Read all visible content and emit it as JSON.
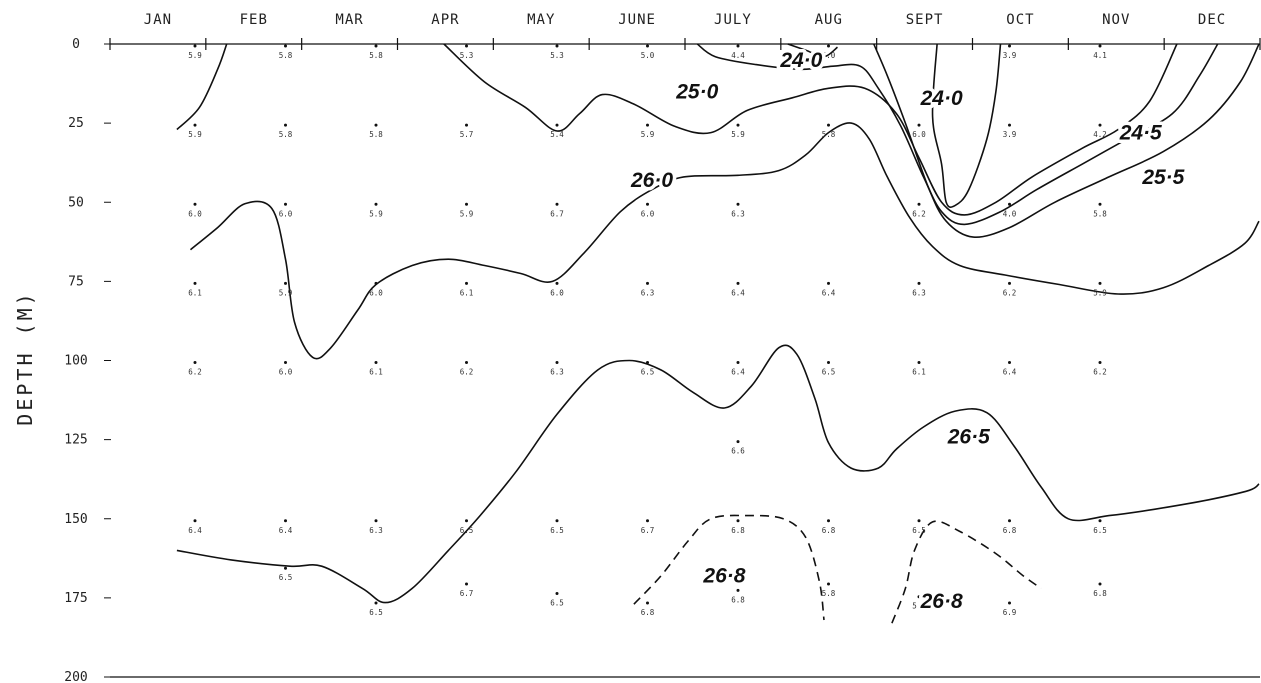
{
  "chart_data": {
    "type": "contour",
    "ylabel": "DEPTH (M)",
    "y_ticks": [
      0,
      25,
      50,
      75,
      100,
      125,
      150,
      175,
      200
    ],
    "ylim": [
      0,
      200
    ],
    "y_inverted": true,
    "months": [
      "JAN",
      "FEB",
      "MAR",
      "APR",
      "MAY",
      "JUNE",
      "JULY",
      "AUG",
      "SEPT",
      "OCT",
      "NOV",
      "DEC"
    ],
    "grid": false,
    "contour_labels": [
      {
        "text": "24·0",
        "month_x": 6.7,
        "depth": 5
      },
      {
        "text": "25·0",
        "month_x": 5.55,
        "depth": 15
      },
      {
        "text": "24·0",
        "month_x": 8.25,
        "depth": 17
      },
      {
        "text": "24·5",
        "month_x": 10.45,
        "depth": 28
      },
      {
        "text": "26·0",
        "month_x": 5.05,
        "depth": 43
      },
      {
        "text": "25·5",
        "month_x": 10.7,
        "depth": 42
      },
      {
        "text": "26·5",
        "month_x": 8.55,
        "depth": 124
      },
      {
        "text": "26·8",
        "month_x": 5.85,
        "depth": 168
      },
      {
        "text": "26·8",
        "month_x": 8.25,
        "depth": 176
      }
    ],
    "contours": [
      {
        "level": "24.0",
        "style": "solid",
        "points": [
          [
            -0.2,
            27
          ],
          [
            0.05,
            20
          ],
          [
            0.25,
            8
          ],
          [
            0.35,
            0
          ]
        ]
      },
      {
        "level": "24.0",
        "style": "solid",
        "points": [
          [
            6.55,
            0
          ],
          [
            6.75,
            2
          ],
          [
            6.95,
            4
          ],
          [
            7.1,
            1
          ]
        ]
      },
      {
        "level": "24.0",
        "style": "solid",
        "points": [
          [
            8.9,
            0
          ],
          [
            8.85,
            15
          ],
          [
            8.75,
            30
          ],
          [
            8.55,
            46
          ],
          [
            8.4,
            51
          ],
          [
            8.3,
            50
          ],
          [
            8.25,
            38
          ],
          [
            8.15,
            23
          ],
          [
            8.2,
            0
          ]
        ]
      },
      {
        "level": "25.0",
        "style": "solid",
        "points": [
          [
            2.75,
            0
          ],
          [
            3.2,
            12
          ],
          [
            3.65,
            20
          ],
          [
            4.0,
            27.5
          ],
          [
            4.25,
            22
          ],
          [
            4.5,
            16
          ],
          [
            4.85,
            19
          ],
          [
            5.3,
            26
          ],
          [
            5.7,
            28
          ],
          [
            6.1,
            21
          ],
          [
            6.6,
            17
          ],
          [
            7.0,
            14
          ],
          [
            7.4,
            14
          ],
          [
            7.75,
            22
          ],
          [
            8.0,
            36
          ],
          [
            8.25,
            50
          ],
          [
            8.5,
            54
          ],
          [
            8.85,
            50
          ],
          [
            9.25,
            42
          ],
          [
            9.8,
            33
          ],
          [
            10.2,
            27
          ],
          [
            10.55,
            18
          ],
          [
            10.85,
            0
          ]
        ]
      },
      {
        "level": "25.0",
        "style": "solid",
        "points": [
          [
            5.55,
            0
          ],
          [
            5.75,
            4
          ],
          [
            6.2,
            6.5
          ],
          [
            6.7,
            8
          ],
          [
            7.05,
            7
          ],
          [
            7.35,
            7
          ],
          [
            7.55,
            14
          ],
          [
            7.8,
            26
          ],
          [
            8.05,
            42
          ],
          [
            8.25,
            53
          ],
          [
            8.5,
            57
          ],
          [
            8.9,
            53
          ],
          [
            9.3,
            46
          ],
          [
            9.8,
            38
          ],
          [
            10.3,
            30
          ],
          [
            10.8,
            22
          ],
          [
            11.1,
            10
          ],
          [
            11.3,
            0
          ]
        ]
      },
      {
        "level": "25.0",
        "style": "solid",
        "points": [
          [
            7.5,
            0
          ],
          [
            7.65,
            10
          ],
          [
            7.85,
            25
          ],
          [
            8.1,
            45
          ],
          [
            8.3,
            56
          ],
          [
            8.6,
            61
          ],
          [
            9.0,
            58
          ],
          [
            9.5,
            50
          ],
          [
            10.1,
            42
          ],
          [
            10.7,
            34
          ],
          [
            11.2,
            24
          ],
          [
            11.55,
            12
          ],
          [
            11.85,
            0
          ]
        ]
      },
      {
        "level": "26.0",
        "style": "solid",
        "points": [
          [
            -0.05,
            65
          ],
          [
            0.25,
            58
          ],
          [
            0.55,
            50.5
          ],
          [
            0.85,
            52
          ],
          [
            1.0,
            68
          ],
          [
            1.1,
            88
          ],
          [
            1.3,
            99
          ],
          [
            1.5,
            96
          ],
          [
            1.8,
            84
          ],
          [
            2.0,
            76
          ],
          [
            2.4,
            70
          ],
          [
            2.8,
            68
          ],
          [
            3.2,
            70
          ],
          [
            3.6,
            72.5
          ],
          [
            3.95,
            75
          ],
          [
            4.3,
            66
          ],
          [
            4.7,
            53
          ],
          [
            5.05,
            46
          ],
          [
            5.4,
            42
          ],
          [
            6.0,
            41.5
          ],
          [
            6.45,
            40
          ],
          [
            6.75,
            35
          ],
          [
            7.0,
            28
          ],
          [
            7.25,
            25
          ],
          [
            7.45,
            30
          ],
          [
            7.65,
            42
          ],
          [
            7.9,
            55
          ],
          [
            8.15,
            64
          ],
          [
            8.45,
            70
          ],
          [
            8.95,
            73
          ],
          [
            9.55,
            76
          ],
          [
            10.2,
            79
          ],
          [
            10.7,
            77
          ],
          [
            11.2,
            70
          ],
          [
            11.6,
            63
          ],
          [
            12.0,
            56
          ]
        ]
      },
      {
        "level": "26.5",
        "style": "solid",
        "points": [
          [
            -0.2,
            160
          ],
          [
            0.4,
            163
          ],
          [
            1.05,
            165
          ],
          [
            1.4,
            165
          ],
          [
            1.85,
            172
          ],
          [
            2.1,
            176.5
          ],
          [
            2.4,
            172
          ],
          [
            2.8,
            160
          ],
          [
            3.15,
            149
          ],
          [
            3.55,
            135
          ],
          [
            4.0,
            117
          ],
          [
            4.45,
            103
          ],
          [
            4.8,
            100
          ],
          [
            5.15,
            103
          ],
          [
            5.5,
            110
          ],
          [
            5.85,
            115
          ],
          [
            6.15,
            108
          ],
          [
            6.45,
            96
          ],
          [
            6.65,
            98
          ],
          [
            6.85,
            112
          ],
          [
            7.0,
            126
          ],
          [
            7.25,
            134
          ],
          [
            7.55,
            134
          ],
          [
            7.75,
            128
          ],
          [
            8.05,
            121
          ],
          [
            8.4,
            116
          ],
          [
            8.75,
            116.5
          ],
          [
            9.05,
            127
          ],
          [
            9.35,
            140
          ],
          [
            9.65,
            150
          ],
          [
            10.1,
            149
          ],
          [
            10.6,
            147
          ],
          [
            11.2,
            144
          ],
          [
            11.65,
            141
          ],
          [
            12.0,
            139
          ]
        ]
      },
      {
        "level": "26.8",
        "style": "dashed",
        "points": [
          [
            4.85,
            177
          ],
          [
            5.15,
            168
          ],
          [
            5.45,
            157
          ],
          [
            5.7,
            150
          ],
          [
            6.1,
            149
          ],
          [
            6.5,
            150
          ],
          [
            6.75,
            156
          ],
          [
            6.9,
            170
          ],
          [
            6.95,
            182
          ]
        ]
      },
      {
        "level": "26.8",
        "style": "dashed",
        "points": [
          [
            7.7,
            183
          ],
          [
            7.85,
            172
          ],
          [
            7.95,
            160
          ],
          [
            8.15,
            151
          ],
          [
            8.45,
            154
          ],
          [
            8.85,
            161
          ],
          [
            9.15,
            168
          ],
          [
            9.35,
            172
          ]
        ]
      }
    ],
    "observations": [
      {
        "m": 0,
        "d": 0,
        "v": "5.9"
      },
      {
        "m": 0,
        "d": 25,
        "v": "5.9"
      },
      {
        "m": 0,
        "d": 50,
        "v": "6.0"
      },
      {
        "m": 0,
        "d": 75,
        "v": "6.1"
      },
      {
        "m": 0,
        "d": 100,
        "v": "6.2"
      },
      {
        "m": 0,
        "d": 150,
        "v": "6.4"
      },
      {
        "m": 1,
        "d": 0,
        "v": "5.8"
      },
      {
        "m": 1,
        "d": 25,
        "v": "5.8"
      },
      {
        "m": 1,
        "d": 50,
        "v": "6.0"
      },
      {
        "m": 1,
        "d": 75,
        "v": "5.9"
      },
      {
        "m": 1,
        "d": 100,
        "v": "6.0"
      },
      {
        "m": 1,
        "d": 150,
        "v": "6.4"
      },
      {
        "m": 1,
        "d": 165,
        "v": "6.5"
      },
      {
        "m": 2,
        "d": 0,
        "v": "5.8"
      },
      {
        "m": 2,
        "d": 25,
        "v": "5.8"
      },
      {
        "m": 2,
        "d": 50,
        "v": "5.9"
      },
      {
        "m": 2,
        "d": 75,
        "v": "6.0"
      },
      {
        "m": 2,
        "d": 100,
        "v": "6.1"
      },
      {
        "m": 2,
        "d": 150,
        "v": "6.3"
      },
      {
        "m": 2,
        "d": 176,
        "v": "6.5"
      },
      {
        "m": 3,
        "d": 0,
        "v": "5.3"
      },
      {
        "m": 3,
        "d": 25,
        "v": "5.7"
      },
      {
        "m": 3,
        "d": 50,
        "v": "5.9"
      },
      {
        "m": 3,
        "d": 75,
        "v": "6.1"
      },
      {
        "m": 3,
        "d": 100,
        "v": "6.2"
      },
      {
        "m": 3,
        "d": 150,
        "v": "6.5"
      },
      {
        "m": 3,
        "d": 170,
        "v": "6.7"
      },
      {
        "m": 4,
        "d": 0,
        "v": "5.3"
      },
      {
        "m": 4,
        "d": 25,
        "v": "5.4"
      },
      {
        "m": 4,
        "d": 50,
        "v": "6.7"
      },
      {
        "m": 4,
        "d": 75,
        "v": "6.0"
      },
      {
        "m": 4,
        "d": 100,
        "v": "6.3"
      },
      {
        "m": 4,
        "d": 150,
        "v": "6.5"
      },
      {
        "m": 4,
        "d": 173,
        "v": "6.5"
      },
      {
        "m": 5,
        "d": 0,
        "v": "5.0"
      },
      {
        "m": 5,
        "d": 25,
        "v": "5.9"
      },
      {
        "m": 5,
        "d": 50,
        "v": "6.0"
      },
      {
        "m": 5,
        "d": 75,
        "v": "6.3"
      },
      {
        "m": 5,
        "d": 100,
        "v": "6.5"
      },
      {
        "m": 5,
        "d": 150,
        "v": "6.7"
      },
      {
        "m": 5,
        "d": 176,
        "v": "6.8"
      },
      {
        "m": 6,
        "d": 0,
        "v": "4.4"
      },
      {
        "m": 6,
        "d": 25,
        "v": "5.9"
      },
      {
        "m": 6,
        "d": 50,
        "v": "6.3"
      },
      {
        "m": 6,
        "d": 75,
        "v": "6.4"
      },
      {
        "m": 6,
        "d": 100,
        "v": "6.4"
      },
      {
        "m": 6,
        "d": 125,
        "v": "6.6"
      },
      {
        "m": 6,
        "d": 150,
        "v": "6.8"
      },
      {
        "m": 6,
        "d": 172,
        "v": "6.8"
      },
      {
        "m": 7,
        "d": 0,
        "v": "5.0"
      },
      {
        "m": 7,
        "d": 25,
        "v": "5.8"
      },
      {
        "m": 7,
        "d": 75,
        "v": "6.4"
      },
      {
        "m": 7,
        "d": 100,
        "v": "6.5"
      },
      {
        "m": 7,
        "d": 150,
        "v": "6.8"
      },
      {
        "m": 7,
        "d": 170,
        "v": "5.8"
      },
      {
        "m": 8,
        "d": 25,
        "v": "6.0"
      },
      {
        "m": 8,
        "d": 50,
        "v": "6.2"
      },
      {
        "m": 8,
        "d": 75,
        "v": "6.3"
      },
      {
        "m": 8,
        "d": 100,
        "v": "6.1"
      },
      {
        "m": 8,
        "d": 150,
        "v": "6.5"
      },
      {
        "m": 8,
        "d": 174,
        "v": "5.7"
      },
      {
        "m": 9,
        "d": 0,
        "v": "3.9"
      },
      {
        "m": 9,
        "d": 25,
        "v": "3.9"
      },
      {
        "m": 9,
        "d": 50,
        "v": "4.0"
      },
      {
        "m": 9,
        "d": 75,
        "v": "6.2"
      },
      {
        "m": 9,
        "d": 100,
        "v": "6.4"
      },
      {
        "m": 9,
        "d": 150,
        "v": "6.8"
      },
      {
        "m": 9,
        "d": 176,
        "v": "6.9"
      },
      {
        "m": 10,
        "d": 0,
        "v": "4.1"
      },
      {
        "m": 10,
        "d": 25,
        "v": "4.2"
      },
      {
        "m": 10,
        "d": 50,
        "v": "5.8"
      },
      {
        "m": 10,
        "d": 75,
        "v": "5.9"
      },
      {
        "m": 10,
        "d": 100,
        "v": "6.2"
      },
      {
        "m": 10,
        "d": 150,
        "v": "6.5"
      },
      {
        "m": 10,
        "d": 170,
        "v": "6.8"
      }
    ]
  }
}
